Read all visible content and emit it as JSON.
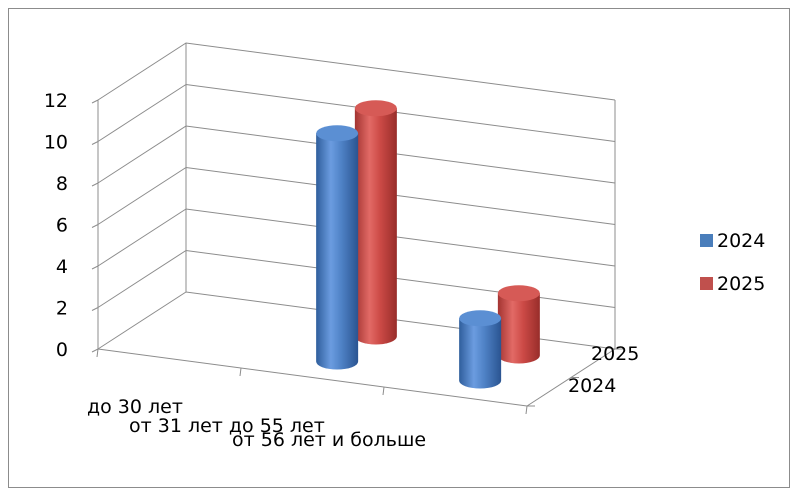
{
  "chart_data": {
    "type": "bar",
    "subtype": "3d-cylinder",
    "title": "",
    "xlabel": "",
    "ylabel": "",
    "ylim": [
      0,
      12
    ],
    "y_ticks": [
      "0",
      "2",
      "4",
      "6",
      "8",
      "10",
      "12"
    ],
    "categories": [
      "до 30 лет",
      "от 31 лет до 55 лет",
      "от 56 лет и больше"
    ],
    "depth_categories": [
      "2024",
      "2025"
    ],
    "series": [
      {
        "name": "2024",
        "color": "#4a7ebb",
        "values": [
          0,
          11,
          3
        ]
      },
      {
        "name": "2025",
        "color": "#c0504d",
        "values": [
          0,
          11,
          3
        ]
      }
    ],
    "legend_position": "right",
    "grid": true
  }
}
